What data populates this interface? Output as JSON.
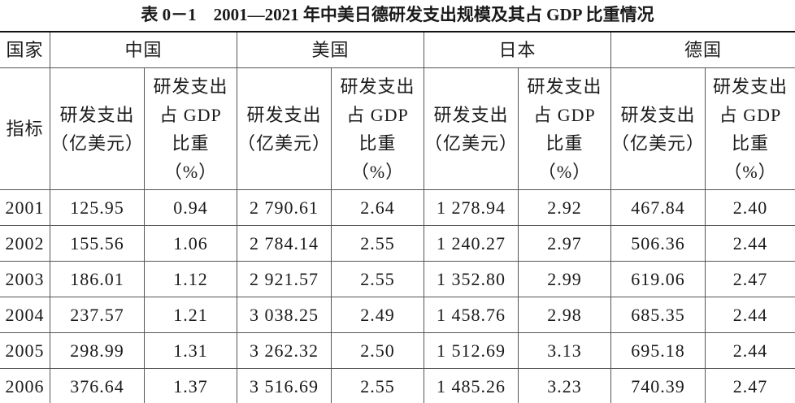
{
  "title": "表 0－1　2001—2021 年中美日德研发支出规模及其占 GDP 比重情况",
  "table": {
    "corner_top": "国家",
    "corner_bottom": "指标",
    "countries": [
      "中国",
      "美国",
      "日本",
      "德国"
    ],
    "columns": [
      [
        "研发支出",
        "（亿美元）"
      ],
      [
        "研发支出",
        "占 GDP",
        "比重",
        "（%）"
      ],
      [
        "研发支出",
        "（亿美元）"
      ],
      [
        "研发支出",
        "占 GDP",
        "比重",
        "（%）"
      ],
      [
        "研发支出",
        "（亿美元）"
      ],
      [
        "研发支出",
        "占 GDP",
        "比重",
        "（%）"
      ],
      [
        "研发支出",
        "（亿美元）"
      ],
      [
        "研发支出",
        "占 GDP",
        "比重",
        "（%）"
      ]
    ],
    "rows": [
      [
        "2001",
        "125.95",
        "0.94",
        "2 790.61",
        "2.64",
        "1 278.94",
        "2.92",
        "467.84",
        "2.40"
      ],
      [
        "2002",
        "155.56",
        "1.06",
        "2 784.14",
        "2.55",
        "1 240.27",
        "2.97",
        "506.36",
        "2.44"
      ],
      [
        "2003",
        "186.01",
        "1.12",
        "2 921.57",
        "2.55",
        "1 352.80",
        "2.99",
        "619.06",
        "2.47"
      ],
      [
        "2004",
        "237.57",
        "1.21",
        "3 038.25",
        "2.49",
        "1 458.76",
        "2.98",
        "685.35",
        "2.44"
      ],
      [
        "2005",
        "298.99",
        "1.31",
        "3 262.32",
        "2.50",
        "1 512.69",
        "3.13",
        "695.18",
        "2.44"
      ],
      [
        "2006",
        "376.64",
        "1.37",
        "3 516.69",
        "2.55",
        "1 485.26",
        "3.23",
        "740.39",
        "2.47"
      ]
    ]
  }
}
